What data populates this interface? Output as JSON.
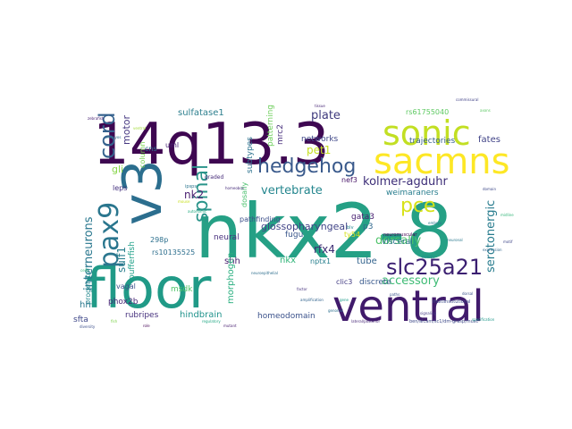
{
  "words": [
    {
      "text": "nkx2-8",
      "color": "#25a085"
    },
    {
      "text": "14q13.3",
      "color": "#3e0751"
    },
    {
      "text": "floor",
      "color": "#209a87"
    },
    {
      "text": "ventral",
      "color": "#401a6b"
    },
    {
      "text": "v3",
      "color": "#2b6e8e"
    },
    {
      "text": "sonic",
      "color": "#c2df23"
    },
    {
      "text": "sacmns",
      "color": "#fde725"
    },
    {
      "text": "pax9",
      "color": "#2a768e"
    },
    {
      "text": "slc25a21",
      "color": "#3b1f71"
    },
    {
      "text": "hedgehog",
      "color": "#3a5a8c"
    },
    {
      "text": "cord",
      "color": "#34618d"
    },
    {
      "text": "spinal",
      "color": "#2a948a"
    },
    {
      "text": "pce",
      "color": "#d8e219"
    },
    {
      "text": "kolmer-agduhr",
      "color": "#3d2e78"
    },
    {
      "text": "interneurons",
      "color": "#29778e"
    },
    {
      "text": "vertebrate",
      "color": "#24868e"
    },
    {
      "text": "plate",
      "color": "#3f3a7d"
    },
    {
      "text": "serotonergic",
      "color": "#287c8e"
    },
    {
      "text": "glossopharyngeal",
      "color": "#414487"
    },
    {
      "text": "rfx4",
      "color": "#3d2c73"
    },
    {
      "text": "sulf1",
      "color": "#2c7f8e"
    },
    {
      "text": "accessory",
      "color": "#3dbb74"
    },
    {
      "text": "dorsally",
      "color": "#4fc36a"
    },
    {
      "text": "nk2",
      "color": "#481d6f"
    },
    {
      "text": "motor",
      "color": "#453781"
    },
    {
      "text": "gli",
      "color": "#87d549"
    },
    {
      "text": "pet1",
      "color": "#c5e021"
    },
    {
      "text": "sulfatase1",
      "color": "#2d7f8e"
    },
    {
      "text": "patterning",
      "color": "#6ccd5a"
    },
    {
      "text": "subtypes",
      "color": "#2c728e"
    },
    {
      "text": "networks",
      "color": "#3f4788"
    },
    {
      "text": "mrc2",
      "color": "#472e7c"
    },
    {
      "text": "trajectories",
      "color": "#35608d"
    },
    {
      "text": "fates",
      "color": "#404387"
    },
    {
      "text": "rs61755040",
      "color": "#5ec962"
    },
    {
      "text": "weimaraners",
      "color": "#287d8e"
    },
    {
      "text": "homeodomain",
      "color": "#3b528b"
    },
    {
      "text": "hindbrain",
      "color": "#20938c"
    },
    {
      "text": "rubripes",
      "color": "#46317e"
    },
    {
      "text": "phox2b",
      "color": "#482677"
    },
    {
      "text": "vagal",
      "color": "#3b518b"
    },
    {
      "text": "tube",
      "color": "#33638d"
    },
    {
      "text": "visceral",
      "color": "#2d718e"
    },
    {
      "text": "shh",
      "color": "#481c6e"
    },
    {
      "text": "nkx",
      "color": "#33b67a"
    },
    {
      "text": "nptx1",
      "color": "#277f8e"
    },
    {
      "text": "gata3",
      "color": "#482071"
    },
    {
      "text": "fugu",
      "color": "#39568c"
    },
    {
      "text": "p3",
      "color": "#31688e"
    },
    {
      "text": "neural",
      "color": "#472f7d"
    },
    {
      "text": "pathfinding",
      "color": "#3c4f8a"
    },
    {
      "text": "morphogen",
      "color": "#29af7f"
    },
    {
      "text": "pufferfish",
      "color": "#1fa088"
    },
    {
      "text": "rs10135525",
      "color": "#2e6f8e"
    },
    {
      "text": "298p",
      "color": "#2d708e"
    },
    {
      "text": "msdk",
      "color": "#52c569"
    },
    {
      "text": "clic3",
      "color": "#433d84"
    },
    {
      "text": "discrete",
      "color": "#38598c"
    },
    {
      "text": "progenitor",
      "color": "#23888e"
    },
    {
      "text": "leps",
      "color": "#45327f"
    },
    {
      "text": "column",
      "color": "#7ad151"
    },
    {
      "text": "hh",
      "color": "#2a788e"
    },
    {
      "text": "sfta",
      "color": "#3f4889"
    },
    {
      "text": "cns",
      "color": "#2c728e"
    },
    {
      "text": "uml",
      "color": "#482475"
    },
    {
      "text": "dosally",
      "color": "#4ac16d"
    },
    {
      "text": "nef3",
      "color": "#481668"
    },
    {
      "text": "ty54",
      "color": "#d5e21a"
    },
    {
      "text": "graded",
      "color": "#472c7a"
    },
    {
      "text": "ipsps",
      "color": "#2b758e"
    },
    {
      "text": "neuromuscular",
      "color": "#440154"
    },
    {
      "text": "blv",
      "color": "#26828e"
    },
    {
      "text": "multiinstitutional",
      "color": "#3e4c8a"
    },
    {
      "text": "ben/alcam/sc1/dm-grasp/musc",
      "color": "#3e4a89"
    },
    {
      "text": "lateral/posterior",
      "color": "#482979"
    },
    {
      "text": "commissural",
      "color": "#414287"
    },
    {
      "text": "neuroepithelial",
      "color": "#2e6e8e"
    },
    {
      "text": "amplification",
      "color": "#32648e"
    },
    {
      "text": "specification",
      "color": "#1f998a"
    },
    {
      "text": "diversity",
      "color": "#3c4f8a"
    },
    {
      "text": "autonomic",
      "color": "#25ab82"
    },
    {
      "text": "zebrafish",
      "color": "#482173"
    },
    {
      "text": "neuronal",
      "color": "#2a788e"
    },
    {
      "text": "midline",
      "color": "#34b679"
    },
    {
      "text": "axons",
      "color": "#5cc863"
    },
    {
      "text": "embryos",
      "color": "#2c738e"
    },
    {
      "text": "signaling",
      "color": "#453882"
    },
    {
      "text": "homeobox",
      "color": "#472d7b"
    },
    {
      "text": "expression",
      "color": "#31688e"
    },
    {
      "text": "paths",
      "color": "#3a548c"
    },
    {
      "text": "ventral",
      "color": "#a2da37"
    },
    {
      "text": "somitic",
      "color": "#24868e"
    },
    {
      "text": "mutant",
      "color": "#481f70"
    },
    {
      "text": "genomic",
      "color": "#2d708e"
    },
    {
      "text": "fish",
      "color": "#7fd34e"
    },
    {
      "text": "dorsal",
      "color": "#3b528b"
    },
    {
      "text": "regulatory",
      "color": "#22a884"
    },
    {
      "text": "tissue",
      "color": "#482677"
    },
    {
      "text": "cells",
      "color": "#35b779"
    },
    {
      "text": "domain",
      "color": "#3e4989"
    },
    {
      "text": "embryo",
      "color": "#2a788e"
    },
    {
      "text": "factor",
      "color": "#46337f"
    },
    {
      "text": "gene",
      "color": "#1e9b8a"
    },
    {
      "text": "mouse",
      "color": "#c8e020"
    },
    {
      "text": "role",
      "color": "#440154"
    },
    {
      "text": "motif",
      "color": "#3f4788"
    }
  ]
}
